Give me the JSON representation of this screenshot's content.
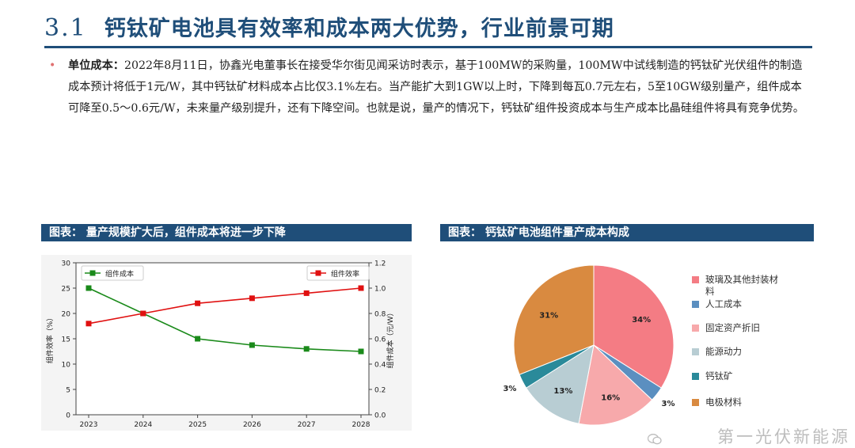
{
  "header": {
    "num": "3.1",
    "title": "钙钛矿电池具有效率和成本两大优势，行业前景可期"
  },
  "body": {
    "bullet": "•",
    "bold_lead": "单位成本：",
    "text": "2022年8月11日，协鑫光电董事长在接受华尔街见闻采访时表示，基于100MW的采购量，100MW中试线制造的钙钛矿光伏组件的制造成本预计将低于1元/W，其中钙钛矿材料成本占比仅3.1%左右。当产能扩大到1GW以上时，下降到每瓦0.7元左右，5至10GW级别量产，组件成本可降至0.5～0.6元/W，未来量产级别提升，还有下降空间。也就是说，量产的情况下，钙钛矿组件投资成本与生产成本比晶硅组件将具有竞争优势。"
  },
  "sections": {
    "left_title": "图表：  量产规模扩大后，组件成本将进一步下降",
    "right_title": "图表：  钙钛矿电池组件量产成本构成"
  },
  "watermark": "第一光伏新能源",
  "chart_data": [
    {
      "type": "line",
      "categories": [
        "2023",
        "2024",
        "2025",
        "2026",
        "2027",
        "2028"
      ],
      "series": [
        {
          "name": "组件成本",
          "axis": "right",
          "color": "#1a8a1a",
          "values": [
            1.0,
            0.8,
            0.6,
            0.55,
            0.52,
            0.5
          ]
        },
        {
          "name": "组件效率",
          "axis": "left",
          "color": "#e01010",
          "values": [
            18,
            20,
            22,
            23,
            24,
            25
          ]
        }
      ],
      "ylabel_left": "组件效率（%）",
      "ylabel_right": "组件成本（元/W）",
      "ylim_left": [
        0,
        30
      ],
      "ylim_right": [
        0,
        1.2
      ],
      "yticks_left": [
        "0",
        "5",
        "10",
        "15",
        "20",
        "25",
        "30"
      ],
      "yticks_right": [
        "0.0",
        "0.2",
        "0.4",
        "0.6",
        "0.8",
        "1.0",
        "1.2"
      ],
      "grid": false
    },
    {
      "type": "pie",
      "slices": [
        {
          "label": "玻璃及其他封装材料",
          "value": 34,
          "color": "#f47c84",
          "text": "34%"
        },
        {
          "label": "人工成本",
          "value": 3,
          "color": "#5b8fc0",
          "text": "3%"
        },
        {
          "label": "固定资产折旧",
          "value": 16,
          "color": "#f7a9ab",
          "text": "16%"
        },
        {
          "label": "能源动力",
          "value": 13,
          "color": "#b8cdd3",
          "text": "13%"
        },
        {
          "label": "钙钛矿",
          "value": 3,
          "color": "#2a8a9a",
          "text": "3%"
        },
        {
          "label": "电极材料",
          "value": 31,
          "color": "#d98a40",
          "text": "31%"
        }
      ],
      "legend_position": "right"
    }
  ]
}
